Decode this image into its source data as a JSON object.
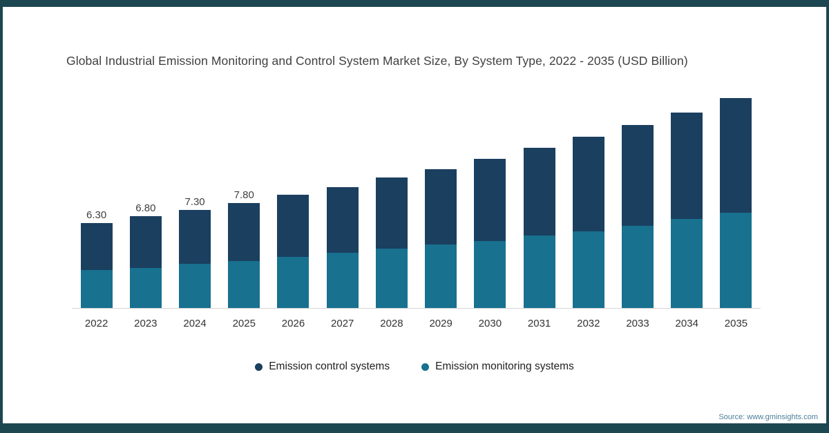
{
  "chart_data": {
    "type": "bar",
    "subtype": "stacked-column",
    "title": "Global Industrial Emission Monitoring and Control System Market Size, By System Type, 2022 - 2035 (USD Billion)",
    "categories": [
      "2022",
      "2023",
      "2024",
      "2025",
      "2026",
      "2027",
      "2028",
      "2029",
      "2030",
      "2031",
      "2032",
      "2033",
      "2034",
      "2035"
    ],
    "series": [
      {
        "name": "Emission control systems",
        "color": "#1b3f5f",
        "stack_position": "top",
        "values": [
          3.5,
          3.8,
          4.0,
          4.3,
          4.6,
          4.9,
          5.3,
          5.6,
          6.1,
          6.5,
          7.0,
          7.5,
          7.9,
          8.5
        ]
      },
      {
        "name": "Emission monitoring systems",
        "color": "#17718f",
        "stack_position": "bottom",
        "values": [
          2.8,
          3.0,
          3.3,
          3.5,
          3.8,
          4.1,
          4.4,
          4.7,
          5.0,
          5.4,
          5.7,
          6.1,
          6.6,
          7.1
        ]
      }
    ],
    "totals": [
      6.3,
      6.8,
      7.3,
      7.8,
      8.4,
      9.0,
      9.7,
      10.3,
      11.1,
      11.9,
      12.7,
      13.6,
      14.5,
      15.6
    ],
    "total_labels": [
      "6.30",
      "6.80",
      "7.30",
      "7.80",
      "",
      "",
      "",
      "",
      "",
      "",
      "",
      "",
      "",
      ""
    ],
    "xlabel": "",
    "ylabel": "",
    "ylim": [
      0,
      16
    ],
    "grid": false,
    "y_axis_visible": false,
    "legend_position": "bottom-center"
  },
  "legend": {
    "items": [
      {
        "label": "Emission control systems",
        "color": "#1b3f5f"
      },
      {
        "label": "Emission monitoring systems",
        "color": "#17718f"
      }
    ]
  },
  "source_text": "Source: www.gminsights.com",
  "colors": {
    "frame": "#1d4750",
    "background": "#ffffff",
    "axis_line": "#d4d4d4",
    "title_text": "#404040",
    "source_text": "#4a7f99"
  }
}
